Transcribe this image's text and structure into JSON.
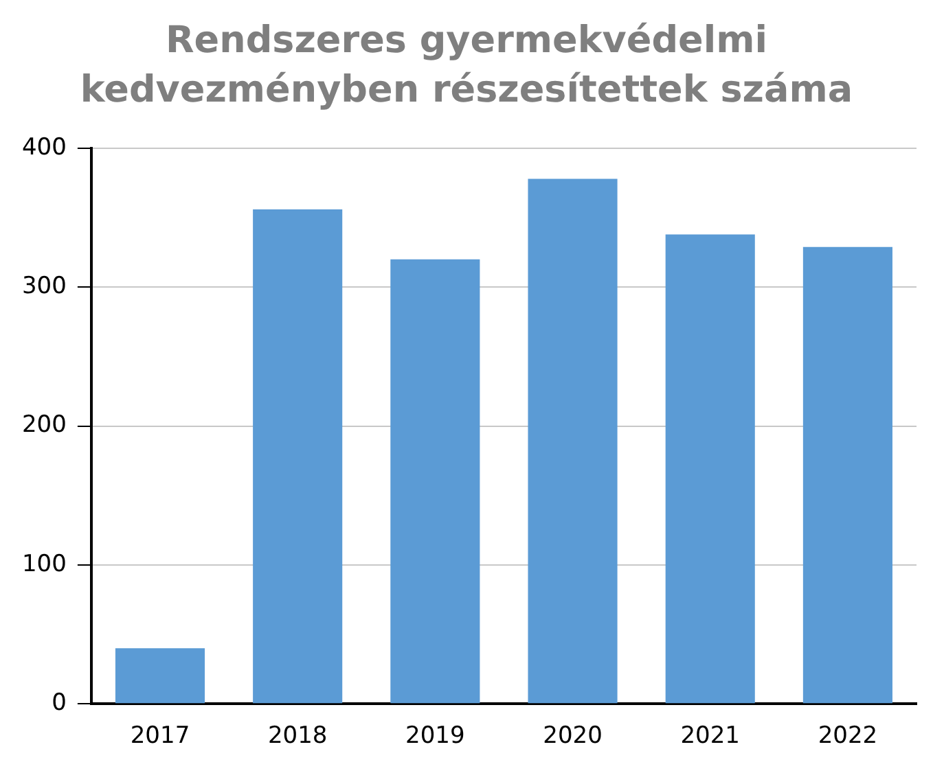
{
  "chart_data": {
    "type": "bar",
    "title": "Rendszeres gyermekvédelmi kedvezményben részesítettek száma",
    "categories": [
      "2017",
      "2018",
      "2019",
      "2020",
      "2021",
      "2022"
    ],
    "values": [
      40,
      356,
      320,
      378,
      338,
      329
    ],
    "color": "#5b9bd5",
    "ylim": [
      0,
      400
    ],
    "yticks": [
      0,
      100,
      200,
      300,
      400
    ],
    "grid": "y",
    "legend": false
  }
}
